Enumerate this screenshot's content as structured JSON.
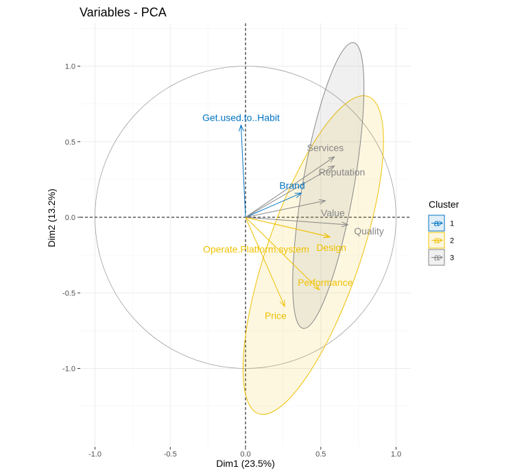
{
  "chart_data": {
    "type": "scatter",
    "subtype": "pca-variable-correlation-circle",
    "title": "Variables - PCA",
    "xlabel": "Dim1 (23.5%)",
    "ylabel": "Dim2 (13.2%)",
    "xlim": [
      -1.1,
      1.1
    ],
    "ylim": [
      -1.4,
      1.25
    ],
    "x_ticks": [
      -1.0,
      -0.5,
      0.0,
      0.5,
      1.0
    ],
    "x_tick_labels": [
      "-1.0",
      "-0.5",
      "0.0",
      "0.5",
      "1.0"
    ],
    "y_ticks": [
      -1.0,
      -0.5,
      0.0,
      0.5,
      1.0
    ],
    "y_tick_labels": [
      "-1.0",
      "-0.5",
      "0.0",
      "0.5",
      "1.0"
    ],
    "grid": true,
    "unit_circle": true,
    "reference_lines": {
      "x": 0,
      "y": 0,
      "style": "dashed"
    },
    "legend": {
      "title": "Cluster",
      "position": "right",
      "key_glyph": "a",
      "entries": [
        {
          "label": "1",
          "color": "#0073C2"
        },
        {
          "label": "2",
          "color": "#EFC000"
        },
        {
          "label": "3",
          "color": "#868686"
        }
      ]
    },
    "series": [
      {
        "name": "1",
        "color": "#0073C2",
        "points": [
          {
            "label": "Get.used.to..Habit",
            "x": -0.03,
            "y": 0.61,
            "label_x": -0.03,
            "label_y": 0.66
          },
          {
            "label": "Brand",
            "x": 0.37,
            "y": 0.16,
            "label_x": 0.31,
            "label_y": 0.21
          }
        ]
      },
      {
        "name": "2",
        "color": "#EFC000",
        "points": [
          {
            "label": "Operate.Platform.system",
            "x": 0.56,
            "y": -0.13,
            "label_x": 0.07,
            "label_y": -0.21
          },
          {
            "label": "Design",
            "x": 0.56,
            "y": -0.13,
            "label_x": 0.57,
            "label_y": -0.2
          },
          {
            "label": "Performance",
            "x": 0.49,
            "y": -0.48,
            "label_x": 0.53,
            "label_y": -0.43
          },
          {
            "label": "Price",
            "x": 0.26,
            "y": -0.59,
            "label_x": 0.2,
            "label_y": -0.65
          }
        ]
      },
      {
        "name": "3",
        "color": "#868686",
        "points": [
          {
            "label": "Services",
            "x": 0.59,
            "y": 0.4,
            "label_x": 0.53,
            "label_y": 0.46
          },
          {
            "label": "Reputation",
            "x": 0.59,
            "y": 0.34,
            "label_x": 0.64,
            "label_y": 0.3
          },
          {
            "label": "Value",
            "x": 0.53,
            "y": 0.11,
            "label_x": 0.58,
            "label_y": 0.03
          },
          {
            "label": "Quality",
            "x": 0.68,
            "y": -0.05,
            "label_x": 0.82,
            "label_y": -0.09
          }
        ]
      }
    ],
    "ellipses": [
      {
        "cluster": "2",
        "color": "#EFC000",
        "cx": 0.45,
        "cy": -0.25,
        "rx": 0.31,
        "ry": 1.11,
        "angle_deg": 19
      },
      {
        "cluster": "3",
        "color": "#868686",
        "cx": 0.55,
        "cy": 0.21,
        "rx": 0.17,
        "ry": 0.96,
        "angle_deg": 10
      }
    ]
  }
}
